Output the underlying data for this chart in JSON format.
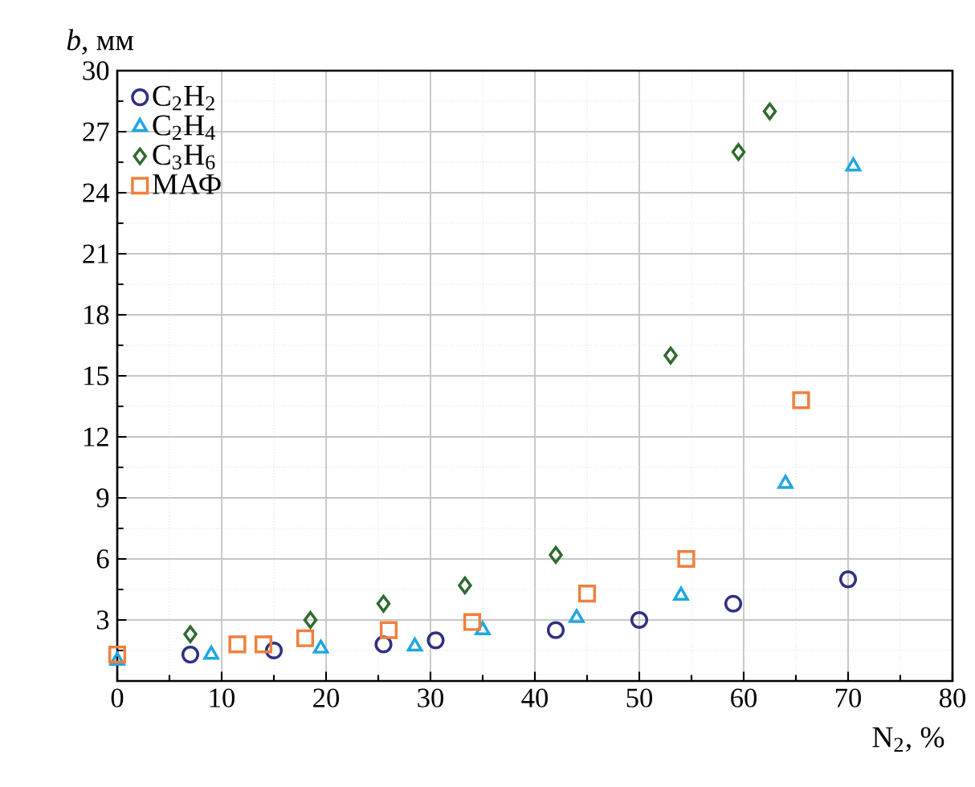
{
  "chart_data": {
    "type": "scatter",
    "xlabel": "N$_{2}$, %",
    "ylabel": "*b*, мм",
    "xlim": [
      0,
      80
    ],
    "xticks": [
      0,
      10,
      20,
      30,
      40,
      50,
      60,
      70,
      80
    ],
    "ylim": [
      0,
      30
    ],
    "yticks": [
      {
        "value": 0,
        "label": null
      },
      3,
      6,
      9,
      12,
      15,
      18,
      21,
      24,
      27,
      30
    ],
    "grid": true,
    "legend": "top left",
    "series": [
      {
        "name": "C$_{2}$H$_{2}$",
        "color": "#2e3182",
        "marker": "circle",
        "x": [
          7,
          15,
          25.5,
          30.5,
          42,
          50,
          59,
          70
        ],
        "values": [
          1.3,
          1.5,
          1.8,
          2.0,
          2.5,
          3.0,
          3.8,
          5.0
        ]
      },
      {
        "name": "C$_{2}$H$_{4}$",
        "color": "#1ea7e1",
        "marker": "triangle",
        "x": [
          0,
          9,
          19.5,
          28.5,
          35,
          44,
          54,
          64,
          70.5
        ],
        "values": [
          1.0,
          1.3,
          1.6,
          1.7,
          2.5,
          3.1,
          4.2,
          9.7,
          25.3
        ]
      },
      {
        "name": "C$_{3}$H$_{6}$",
        "color": "#2f6b2f",
        "marker": "diamond",
        "x": [
          7,
          18.5,
          25.5,
          33.3,
          42,
          53,
          59.5,
          62.5
        ],
        "values": [
          2.3,
          3.0,
          3.8,
          4.7,
          6.2,
          16,
          26,
          28
        ]
      },
      {
        "name": "МАФ",
        "color": "#f07f3c",
        "marker": "square",
        "x": [
          0,
          11.5,
          14,
          18,
          26,
          34,
          45,
          54.5,
          65.5
        ],
        "values": [
          1.3,
          1.8,
          1.8,
          2.1,
          2.5,
          2.9,
          4.3,
          6.0,
          13.8
        ]
      }
    ]
  }
}
